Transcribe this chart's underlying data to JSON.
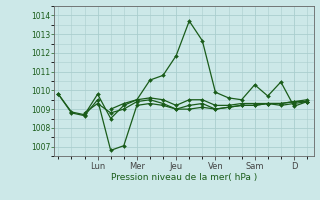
{
  "xlabel": "Pression niveau de la mer( hPa )",
  "ylim": [
    1006.5,
    1014.5
  ],
  "yticks": [
    1007,
    1008,
    1009,
    1010,
    1011,
    1012,
    1013,
    1014
  ],
  "day_labels": [
    "Lun",
    "Mer",
    "Jeu",
    "Ven",
    "Sam",
    "D"
  ],
  "day_positions": [
    3,
    6,
    9,
    12,
    15,
    18
  ],
  "xlim": [
    -0.3,
    19.5
  ],
  "background_color": "#cce8e8",
  "grid_color": "#aacece",
  "line_color": "#1a5c1a",
  "text_color": "#1a5c1a",
  "series": [
    {
      "x": [
        0,
        1,
        2,
        3,
        4,
        5,
        6,
        7,
        8,
        9,
        10,
        11,
        12,
        13,
        14,
        15,
        16,
        17,
        18,
        19
      ],
      "y": [
        1009.8,
        1008.85,
        1008.7,
        1009.8,
        1008.5,
        1009.2,
        1009.5,
        1010.55,
        1010.8,
        1011.85,
        1013.7,
        1012.65,
        1009.9,
        1009.6,
        1009.5,
        1010.3,
        1009.7,
        1010.45,
        1009.15,
        1009.4
      ]
    },
    {
      "x": [
        0,
        1,
        2,
        3,
        4,
        5,
        6,
        7,
        8,
        9,
        10,
        11,
        12,
        13,
        14,
        15,
        16,
        17,
        18,
        19
      ],
      "y": [
        1009.8,
        1008.8,
        1008.65,
        1009.5,
        1006.8,
        1007.05,
        1009.2,
        1009.3,
        1009.2,
        1009.0,
        1009.0,
        1009.1,
        1009.0,
        1009.1,
        1009.2,
        1009.2,
        1009.3,
        1009.3,
        1009.4,
        1009.4
      ]
    },
    {
      "x": [
        2,
        3,
        4,
        5,
        6,
        7,
        8,
        9,
        10,
        11,
        12,
        13,
        14,
        15,
        16,
        17,
        18,
        19
      ],
      "y": [
        1008.8,
        1009.3,
        1008.8,
        1009.0,
        1009.4,
        1009.5,
        1009.3,
        1009.0,
        1009.2,
        1009.3,
        1009.0,
        1009.1,
        1009.2,
        1009.2,
        1009.3,
        1009.2,
        1009.3,
        1009.4
      ]
    },
    {
      "x": [
        4,
        5,
        6,
        7,
        8,
        9,
        10,
        11,
        12,
        13,
        14,
        15,
        16,
        17,
        18,
        19
      ],
      "y": [
        1009.0,
        1009.3,
        1009.5,
        1009.6,
        1009.5,
        1009.2,
        1009.5,
        1009.5,
        1009.2,
        1009.2,
        1009.3,
        1009.3,
        1009.3,
        1009.3,
        1009.4,
        1009.5
      ]
    }
  ]
}
